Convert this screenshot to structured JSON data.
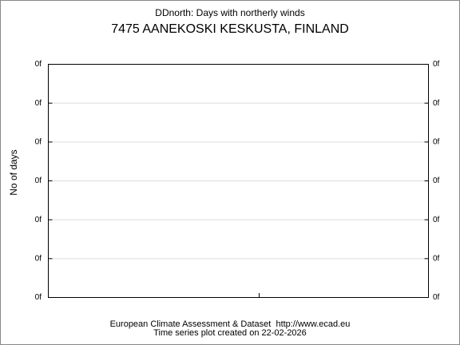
{
  "chart_data": {
    "type": "line",
    "title": "DDnorth: Days with northerly winds",
    "subtitle": "7475 AANEKOSKI KESKUSTA, FINLAND",
    "y_label": "No of days",
    "ytick_labels": [
      "0f",
      "0f",
      "0f",
      "0f",
      "0f",
      "0f",
      "0f"
    ],
    "grid": true,
    "footer": [
      "European Climate Assessment & Dataset  http://www.ecad.eu",
      "Time series plot created on 22-02-2026"
    ]
  }
}
